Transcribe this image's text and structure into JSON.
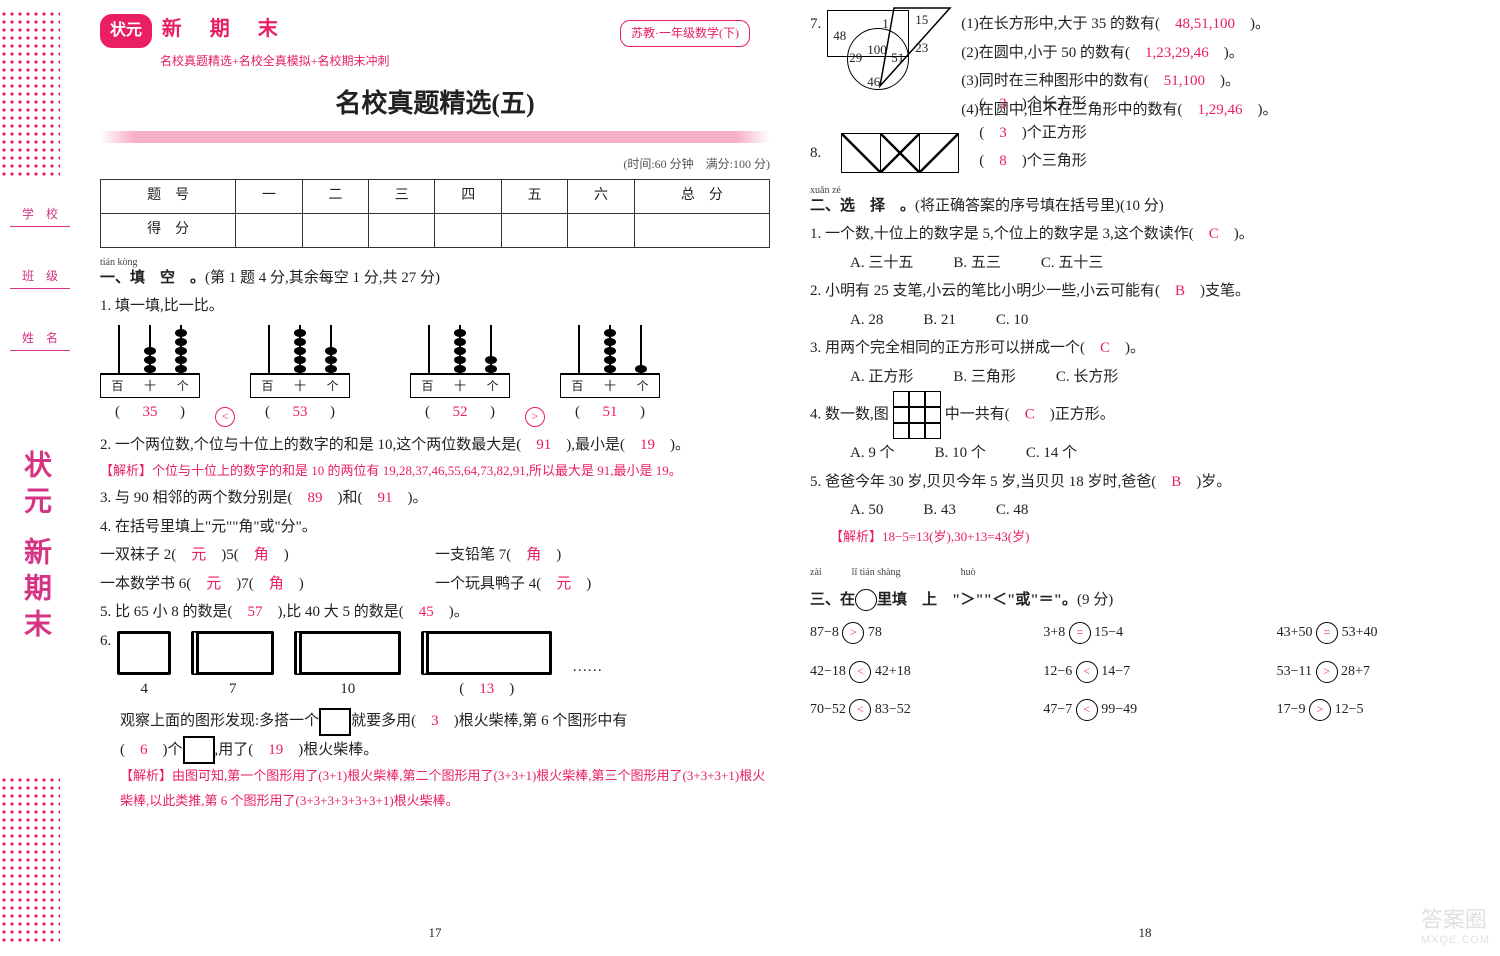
{
  "deco": {
    "left_label1": "学　校",
    "left_label2": "班　级",
    "left_label3": "姓　名",
    "vert": "状元 新期末"
  },
  "header": {
    "badge": "状元",
    "series": "新　期　末",
    "subtitle": "名校真题精选+名校全真模拟+名校期末冲刺",
    "edition": "苏教·一年级数学(下)",
    "title": "名校真题精选(五)",
    "timing": "(时间:60 分钟　满分:100 分)"
  },
  "score_table": {
    "row1": [
      "题　号",
      "一",
      "二",
      "三",
      "四",
      "五",
      "六",
      "总　分"
    ],
    "row2": [
      "得　分",
      "",
      "",
      "",
      "",
      "",
      "",
      ""
    ]
  },
  "sec1": {
    "pinyin": "tián kòng",
    "heading": "一、填　空　。",
    "points": "(第 1 题 4 分,其余每空 1 分,共 27 分)",
    "q1": "1. 填一填,比一比。",
    "abacus_labels": [
      "百",
      "十",
      "个"
    ],
    "q1_vals": [
      "35",
      "53",
      "52",
      "51"
    ],
    "q1_cmp": [
      "<",
      ">"
    ],
    "q2": "2. 一个两位数,个位与十位上的数字的和是 10,这个两位数最大是(　",
    "q2_a": "91",
    "q2_mid": "　),最小是(　",
    "q2_b": "19",
    "q2_end": "　)。",
    "q2_soln": "【解析】个位与十位上的数字的和是 10 的两位有 19,28,37,46,55,64,73,82,91,所以最大是 91,最小是 19。",
    "q3": "3. 与 90 相邻的两个数分别是(　",
    "q3_a": "89",
    "q3_mid": "　)和(　",
    "q3_b": "91",
    "q3_end": "　)。",
    "q4": "4. 在括号里填上\"元\"\"角\"或\"分\"。",
    "q4_l1": "一双袜子 2(　",
    "q4_l1a": "元",
    "q4_l1m": "　)5(　",
    "q4_l1b": "角",
    "q4_l1e": "　)",
    "q4_r1": "一支铅笔 7(　",
    "q4_r1a": "角",
    "q4_r1e": "　)",
    "q4_l2": "一本数学书 6(　",
    "q4_l2a": "元",
    "q4_l2m": "　)7(　",
    "q4_l2b": "角",
    "q4_l2e": "　)",
    "q4_r2": "一个玩具鸭子 4(　",
    "q4_r2a": "元",
    "q4_r2e": "　)",
    "q5": "5. 比 65 小 8 的数是(　",
    "q5_a": "57",
    "q5_m": "　),比 40 大 5 的数是(　",
    "q5_b": "45",
    "q5_e": "　)。",
    "q6": "6.",
    "q6_nums": [
      "4",
      "7",
      "10",
      "(　",
      "13",
      "　)"
    ],
    "q6_dots": "……",
    "q6_t1": "观察上面的图形发现:多搭一个",
    "q6_t1a": "就要多用(　",
    "q6_t1b": "3",
    "q6_t1c": "　)根火柴棒,第 6 个图形中有",
    "q6_t2": "(　",
    "q6_t2a": "6",
    "q6_t2b": "　)个",
    "q6_t2c": ",用了(　",
    "q6_t2d": "19",
    "q6_t2e": "　)根火柴棒。",
    "q6_soln": "【解析】由图可知,第一个图形用了(3+1)根火柴棒,第二个图形用了(3+3+1)根火柴棒,第三个图形用了(3+3+3+1)根火柴棒,以此类推,第 6 个图形用了(3+3+3+3+3+3+1)根火柴棒。"
  },
  "page_left_num": "17",
  "sec1r": {
    "q7": "7.",
    "venn_nums": {
      "tl": "48",
      "t": "1",
      "tr": "15",
      "c": "100",
      "cr": "51",
      "bl": "29",
      "b": "46",
      "r": "23"
    },
    "q7_1": "(1)在长方形中,大于 35 的数有(　",
    "q7_1a": "48,51,100",
    "q7_1e": "　)。",
    "q7_2": "(2)在圆中,小于 50 的数有(　",
    "q7_2a": "1,23,29,46",
    "q7_2e": "　)。",
    "q7_3": "(3)同时在三种图形中的数有(　",
    "q7_3a": "51,100",
    "q7_3e": "　)。",
    "q7_4": "(4)在圆中,但不在三角形中的数有(　",
    "q7_4a": "1,29,46",
    "q7_4e": "　)。",
    "q8": "8.",
    "q8_1": "(　",
    "q8_1a": "3",
    "q8_1e": "　)个长方形",
    "q8_2": "(　",
    "q8_2a": "3",
    "q8_2e": "　)个正方形",
    "q8_3": "(　",
    "q8_3a": "8",
    "q8_3e": "　)个三角形"
  },
  "sec2": {
    "pinyin": "xuǎn zé",
    "heading": "二、选　择　。",
    "points": "(将正确答案的序号填在括号里)(10 分)",
    "q1": "1. 一个数,十位上的数字是 5,个位上的数字是 3,这个数读作(　",
    "q1a": "C",
    "q1e": "　)。",
    "q1_opts": [
      "A. 三十五",
      "B. 五三",
      "C. 五十三"
    ],
    "q2": "2. 小明有 25 支笔,小云的笔比小明少一些,小云可能有(　",
    "q2a": "B",
    "q2e": "　)支笔。",
    "q2_opts": [
      "A. 28",
      "B. 21",
      "C. 10"
    ],
    "q3": "3. 用两个完全相同的正方形可以拼成一个(　",
    "q3a": "C",
    "q3e": "　)。",
    "q3_opts": [
      "A. 正方形",
      "B. 三角形",
      "C. 长方形"
    ],
    "q4": "4. 数一数,图",
    "q4m": "中一共有(　",
    "q4a": "C",
    "q4e": "　)正方形。",
    "q4_opts": [
      "A. 9 个",
      "B. 10 个",
      "C. 14 个"
    ],
    "q5": "5. 爸爸今年 30 岁,贝贝今年 5 岁,当贝贝 18 岁时,爸爸(　",
    "q5a": "B",
    "q5e": "　)岁。",
    "q5_opts": [
      "A. 50",
      "B. 43",
      "C. 48"
    ],
    "q5_soln": "【解析】18−5=13(岁),30+13=43(岁)"
  },
  "sec3": {
    "pinyin1": "zài",
    "pinyin2": "lǐ tián shàng",
    "pinyin3": "huò",
    "heading_pre": "三、在",
    "heading_mid": "里填　上　\"＞\"\"＜\"或\"＝\"。",
    "points": "(9 分)",
    "grid": [
      {
        "l": "87−8",
        "s": ">",
        "r": "78"
      },
      {
        "l": "3+8",
        "s": "=",
        "r": "15−4"
      },
      {
        "l": "43+50",
        "s": "=",
        "r": "53+40"
      },
      {
        "l": "42−18",
        "s": "<",
        "r": "42+18"
      },
      {
        "l": "12−6",
        "s": "<",
        "r": "14−7"
      },
      {
        "l": "53−11",
        "s": ">",
        "r": "28+7"
      },
      {
        "l": "70−52",
        "s": "<",
        "r": "83−52"
      },
      {
        "l": "47−7",
        "s": "<",
        "r": "99−49"
      },
      {
        "l": "17−9",
        "s": ">",
        "r": "12−5"
      }
    ]
  },
  "page_right_num": "18",
  "watermark": {
    "big": "答案圈",
    "small": "MXQE.COM"
  }
}
